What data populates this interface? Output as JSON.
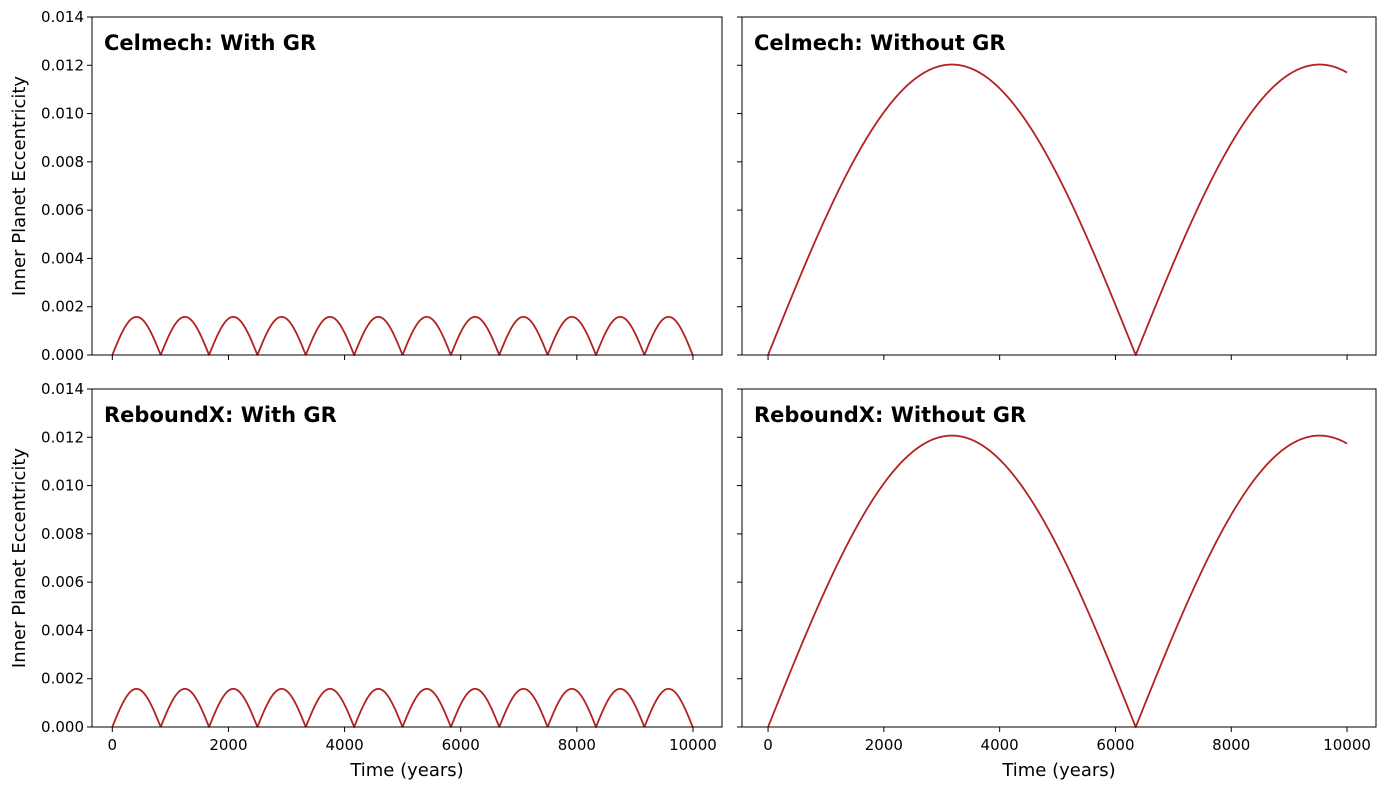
{
  "chart_data": [
    {
      "type": "line",
      "title": "Celmech: With GR",
      "xlabel": "",
      "ylabel": "Inner Planet Eccentricity",
      "xlim": [
        -350,
        10500
      ],
      "ylim": [
        0,
        0.014
      ],
      "xticks": [
        0,
        2000,
        4000,
        6000,
        8000,
        10000
      ],
      "yticks": [
        0,
        0.002,
        0.004,
        0.006,
        0.008,
        0.01,
        0.012,
        0.014
      ],
      "ytick_labels": [
        "0.000",
        "0.002",
        "0.004",
        "0.006",
        "0.008",
        "0.010",
        "0.012",
        "0.014"
      ],
      "show_xtick_labels": false,
      "show_ytick_labels": true,
      "grid": false,
      "series": [
        {
          "color": "#b22222",
          "shape": "abs-sine",
          "amplitude": 0.00158,
          "period": 833,
          "x_start": 0,
          "x_end": 10000
        }
      ]
    },
    {
      "type": "line",
      "title": "Celmech: Without GR",
      "xlabel": "",
      "ylabel": "",
      "xlim": [
        -450,
        10500
      ],
      "ylim": [
        0,
        0.014
      ],
      "xticks": [
        0,
        2000,
        4000,
        6000,
        8000,
        10000
      ],
      "yticks": [
        0,
        0.002,
        0.004,
        0.006,
        0.008,
        0.01,
        0.012,
        0.014
      ],
      "show_xtick_labels": false,
      "show_ytick_labels": false,
      "grid": false,
      "series": [
        {
          "color": "#b22222",
          "shape": "abs-sine",
          "amplitude": 0.01203,
          "period": 6350,
          "x_start": 0,
          "x_end": 10000
        }
      ]
    },
    {
      "type": "line",
      "title": "ReboundX: With GR",
      "xlabel": "Time (years)",
      "ylabel": "Inner Planet Eccentricity",
      "xlim": [
        -350,
        10500
      ],
      "ylim": [
        0,
        0.014
      ],
      "xticks": [
        0,
        2000,
        4000,
        6000,
        8000,
        10000
      ],
      "xtick_labels": [
        "0",
        "2000",
        "4000",
        "6000",
        "8000",
        "10000"
      ],
      "yticks": [
        0,
        0.002,
        0.004,
        0.006,
        0.008,
        0.01,
        0.012,
        0.014
      ],
      "ytick_labels": [
        "0.000",
        "0.002",
        "0.004",
        "0.006",
        "0.008",
        "0.010",
        "0.012",
        "0.014"
      ],
      "show_xtick_labels": true,
      "show_ytick_labels": true,
      "grid": false,
      "series": [
        {
          "color": "#b22222",
          "shape": "abs-sine",
          "amplitude": 0.00158,
          "period": 833,
          "x_start": 0,
          "x_end": 10000
        }
      ]
    },
    {
      "type": "line",
      "title": "ReboundX: Without GR",
      "xlabel": "Time (years)",
      "ylabel": "",
      "xlim": [
        -450,
        10500
      ],
      "ylim": [
        0,
        0.014
      ],
      "xticks": [
        0,
        2000,
        4000,
        6000,
        8000,
        10000
      ],
      "xtick_labels": [
        "0",
        "2000",
        "4000",
        "6000",
        "8000",
        "10000"
      ],
      "yticks": [
        0,
        0.002,
        0.004,
        0.006,
        0.008,
        0.01,
        0.012,
        0.014
      ],
      "show_xtick_labels": true,
      "show_ytick_labels": false,
      "grid": false,
      "series": [
        {
          "color": "#b22222",
          "shape": "abs-sine",
          "amplitude": 0.01207,
          "period": 6350,
          "x_start": 0,
          "x_end": 10000
        }
      ]
    }
  ]
}
